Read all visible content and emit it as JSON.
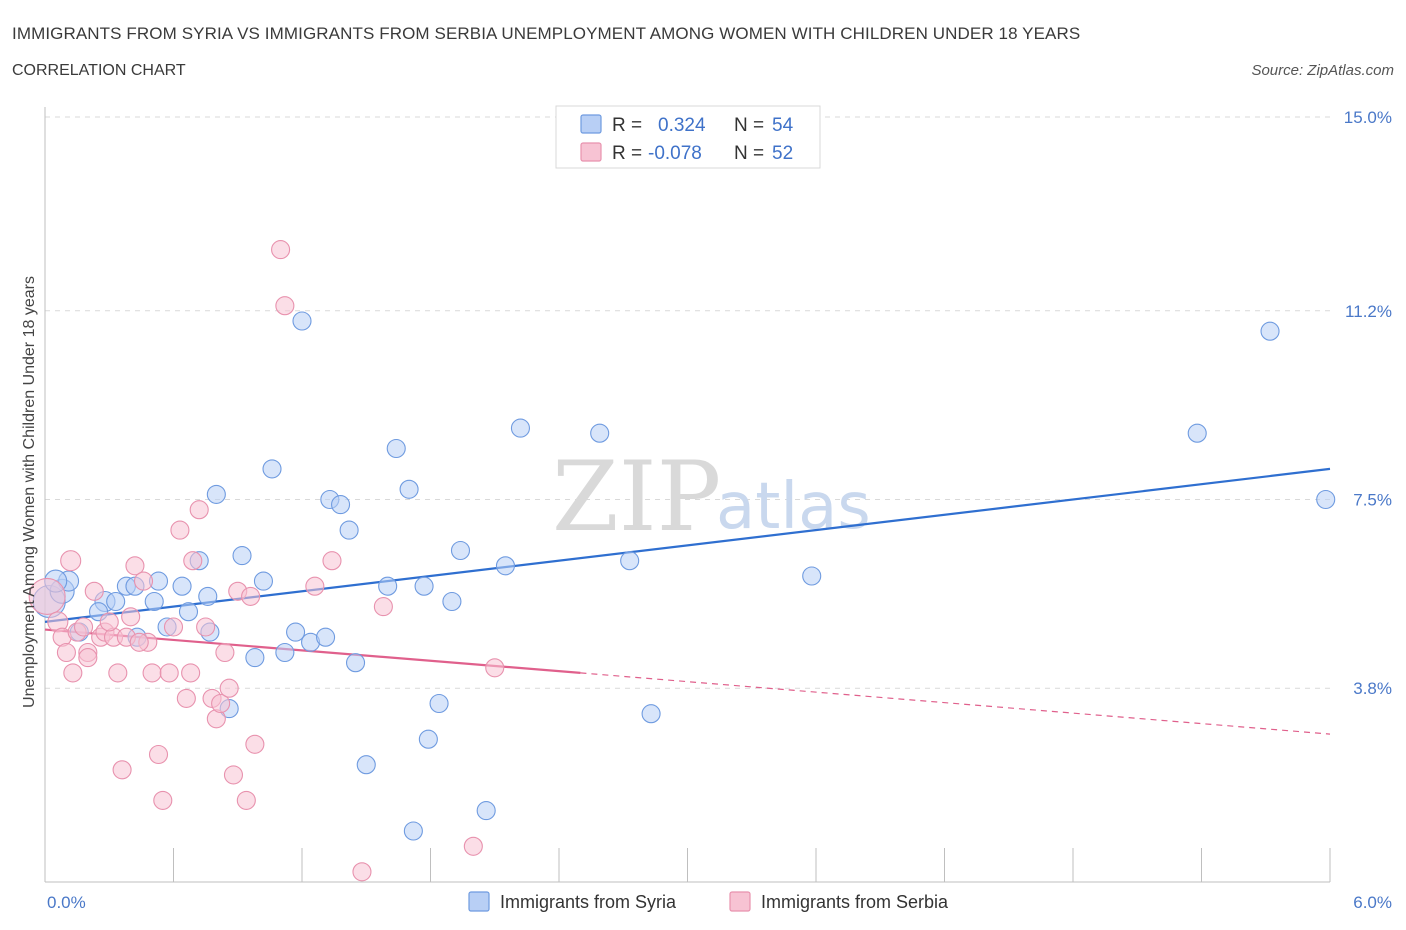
{
  "header": {
    "title": "IMMIGRANTS FROM SYRIA VS IMMIGRANTS FROM SERBIA UNEMPLOYMENT AMONG WOMEN WITH CHILDREN UNDER 18 YEARS",
    "subtitle": "CORRELATION CHART",
    "source": "Source: ZipAtlas.com"
  },
  "watermark": {
    "zip": "ZIP",
    "atlas": "atlas"
  },
  "legend": {
    "r_label": "R =",
    "n_label": "N =",
    "syria": {
      "r": "0.324",
      "n": "54"
    },
    "serbia": {
      "r": "-0.078",
      "n": "52"
    }
  },
  "colors": {
    "syria_fill": "#b8cff5",
    "syria_stroke": "#6f9be0",
    "syria_line": "#2f6fd0",
    "serbia_fill": "#f7c3d3",
    "serbia_stroke": "#e892ae",
    "serbia_line": "#e0608c",
    "grid": "#d9d9d9",
    "axis_text": "#4a78c8"
  },
  "chart_data": {
    "type": "scatter",
    "title": "IMMIGRANTS FROM SYRIA VS IMMIGRANTS FROM SERBIA UNEMPLOYMENT AMONG WOMEN WITH CHILDREN UNDER 18 YEARS",
    "xlabel": "",
    "ylabel": "Unemployment Among Women with Children Under 18 years",
    "xlim": [
      0,
      6.0
    ],
    "ylim": [
      0,
      15.0
    ],
    "x_tick_labels": [
      "0.0%",
      "6.0%"
    ],
    "y_ticks": [
      3.8,
      7.5,
      11.2,
      15.0
    ],
    "y_tick_labels": [
      "3.8%",
      "7.5%",
      "11.2%",
      "15.0%"
    ],
    "grid": true,
    "legend_placement": "top-center",
    "series": [
      {
        "name": "Immigrants from Syria",
        "r": 0.324,
        "n": 54,
        "trend": {
          "x0": 0.0,
          "y0": 5.1,
          "x1": 6.0,
          "y1": 8.1
        },
        "points": [
          [
            0.02,
            5.5,
            16
          ],
          [
            0.08,
            5.7,
            12
          ],
          [
            0.11,
            5.9,
            10
          ],
          [
            0.28,
            5.5,
            10
          ],
          [
            0.25,
            5.3,
            9
          ],
          [
            0.33,
            5.5,
            9
          ],
          [
            0.38,
            5.8,
            9
          ],
          [
            0.42,
            5.8,
            9
          ],
          [
            0.43,
            4.8,
            9
          ],
          [
            0.51,
            5.5,
            9
          ],
          [
            0.53,
            5.9,
            9
          ],
          [
            0.57,
            5.0,
            9
          ],
          [
            0.64,
            5.8,
            9
          ],
          [
            0.67,
            5.3,
            9
          ],
          [
            0.72,
            6.3,
            9
          ],
          [
            0.76,
            5.6,
            9
          ],
          [
            0.77,
            4.9,
            9
          ],
          [
            0.8,
            7.6,
            9
          ],
          [
            0.86,
            3.4,
            9
          ],
          [
            0.92,
            6.4,
            9
          ],
          [
            0.98,
            4.4,
            9
          ],
          [
            1.02,
            5.9,
            9
          ],
          [
            1.06,
            8.1,
            9
          ],
          [
            1.12,
            4.5,
            9
          ],
          [
            1.17,
            4.9,
            9
          ],
          [
            1.2,
            11.0,
            9
          ],
          [
            1.24,
            4.7,
            9
          ],
          [
            1.31,
            4.8,
            9
          ],
          [
            1.33,
            7.5,
            9
          ],
          [
            1.38,
            7.4,
            9
          ],
          [
            1.42,
            6.9,
            9
          ],
          [
            1.45,
            4.3,
            9
          ],
          [
            1.5,
            2.3,
            9
          ],
          [
            1.6,
            5.8,
            9
          ],
          [
            1.64,
            8.5,
            9
          ],
          [
            1.7,
            7.7,
            9
          ],
          [
            1.72,
            1.0,
            9
          ],
          [
            1.77,
            5.8,
            9
          ],
          [
            1.79,
            2.8,
            9
          ],
          [
            1.84,
            3.5,
            9
          ],
          [
            1.9,
            5.5,
            9
          ],
          [
            1.94,
            6.5,
            9
          ],
          [
            2.06,
            1.4,
            9
          ],
          [
            2.15,
            6.2,
            9
          ],
          [
            2.22,
            8.9,
            9
          ],
          [
            2.59,
            8.8,
            9
          ],
          [
            2.73,
            6.3,
            9
          ],
          [
            2.83,
            3.3,
            9
          ],
          [
            3.58,
            6.0,
            9
          ],
          [
            5.38,
            8.8,
            9
          ],
          [
            5.72,
            10.8,
            9
          ],
          [
            5.98,
            7.5,
            9
          ],
          [
            0.05,
            5.9,
            11
          ],
          [
            0.16,
            4.9,
            9
          ]
        ]
      },
      {
        "name": "Immigrants from Serbia",
        "r": -0.078,
        "n": 52,
        "trend": {
          "x0": 0.0,
          "y0": 4.95,
          "x1": 2.5,
          "y1": 4.1,
          "dash_x1": 6.0,
          "dash_y1": 2.9
        },
        "points": [
          [
            0.01,
            5.6,
            18
          ],
          [
            0.06,
            5.1,
            10
          ],
          [
            0.12,
            6.3,
            10
          ],
          [
            0.08,
            4.8,
            9
          ],
          [
            0.13,
            4.1,
            9
          ],
          [
            0.15,
            4.9,
            9
          ],
          [
            0.18,
            5.0,
            9
          ],
          [
            0.2,
            4.5,
            9
          ],
          [
            0.23,
            5.7,
            9
          ],
          [
            0.26,
            4.8,
            9
          ],
          [
            0.28,
            4.9,
            9
          ],
          [
            0.32,
            4.8,
            9
          ],
          [
            0.34,
            4.1,
            9
          ],
          [
            0.36,
            2.2,
            9
          ],
          [
            0.4,
            5.2,
            9
          ],
          [
            0.42,
            6.2,
            9
          ],
          [
            0.46,
            5.9,
            9
          ],
          [
            0.48,
            4.7,
            9
          ],
          [
            0.5,
            4.1,
            9
          ],
          [
            0.53,
            2.5,
            9
          ],
          [
            0.55,
            1.6,
            9
          ],
          [
            0.58,
            4.1,
            9
          ],
          [
            0.6,
            5.0,
            9
          ],
          [
            0.63,
            6.9,
            9
          ],
          [
            0.66,
            3.6,
            9
          ],
          [
            0.68,
            4.1,
            9
          ],
          [
            0.69,
            6.3,
            9
          ],
          [
            0.72,
            7.3,
            9
          ],
          [
            0.75,
            5.0,
            9
          ],
          [
            0.78,
            3.6,
            9
          ],
          [
            0.8,
            3.2,
            9
          ],
          [
            0.82,
            3.5,
            9
          ],
          [
            0.84,
            4.5,
            9
          ],
          [
            0.86,
            3.8,
            9
          ],
          [
            0.88,
            2.1,
            9
          ],
          [
            0.9,
            5.7,
            9
          ],
          [
            0.94,
            1.6,
            9
          ],
          [
            0.96,
            5.6,
            9
          ],
          [
            0.98,
            2.7,
            9
          ],
          [
            1.1,
            12.4,
            9
          ],
          [
            1.12,
            11.3,
            9
          ],
          [
            1.26,
            5.8,
            9
          ],
          [
            1.34,
            6.3,
            9
          ],
          [
            1.48,
            0.2,
            9
          ],
          [
            1.58,
            5.4,
            9
          ],
          [
            2.0,
            0.7,
            9
          ],
          [
            2.1,
            4.2,
            9
          ],
          [
            0.2,
            4.4,
            9
          ],
          [
            0.3,
            5.1,
            9
          ],
          [
            0.1,
            4.5,
            9
          ],
          [
            0.38,
            4.8,
            9
          ],
          [
            0.44,
            4.7,
            9
          ]
        ]
      }
    ]
  },
  "bottom_legend": {
    "syria": "Immigrants from Syria",
    "serbia": "Immigrants from Serbia"
  }
}
